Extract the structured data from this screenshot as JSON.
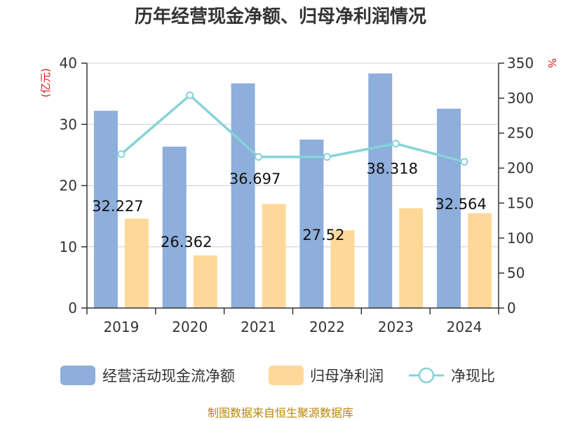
{
  "chart_data": {
    "type": "bar",
    "title": "历年经营现金净额、归母净利润情况",
    "categories": [
      "2019",
      "2020",
      "2021",
      "2022",
      "2023",
      "2024"
    ],
    "series": [
      {
        "name": "经营活动现金流净额",
        "kind": "bar",
        "axis": "left",
        "color": "#8eaedb",
        "values": [
          32.227,
          26.362,
          36.697,
          27.52,
          38.318,
          32.564
        ]
      },
      {
        "name": "归母净利润",
        "kind": "bar",
        "axis": "left",
        "color": "#ffd899",
        "values": [
          14.6,
          8.6,
          17.0,
          12.7,
          16.3,
          15.5
        ]
      },
      {
        "name": "净现比",
        "kind": "line",
        "axis": "right",
        "color": "#86d3d8",
        "values": [
          220,
          304,
          216,
          216,
          235,
          209
        ]
      }
    ],
    "data_labels": [
      "32.227",
      "26.362",
      "36.697",
      "27.52",
      "38.318",
      "32.564"
    ],
    "left_axis": {
      "unit": "(亿元)",
      "ylim": [
        0,
        40
      ],
      "ticks": [
        "0",
        "10",
        "20",
        "30",
        "40"
      ]
    },
    "right_axis": {
      "unit": "%",
      "ylim": [
        0,
        350
      ],
      "ticks": [
        "0",
        "50",
        "100",
        "150",
        "200",
        "250",
        "300",
        "350"
      ]
    },
    "grid": true,
    "legend_position": "bottom",
    "source": "制图数据来自恒生聚源数据库"
  }
}
